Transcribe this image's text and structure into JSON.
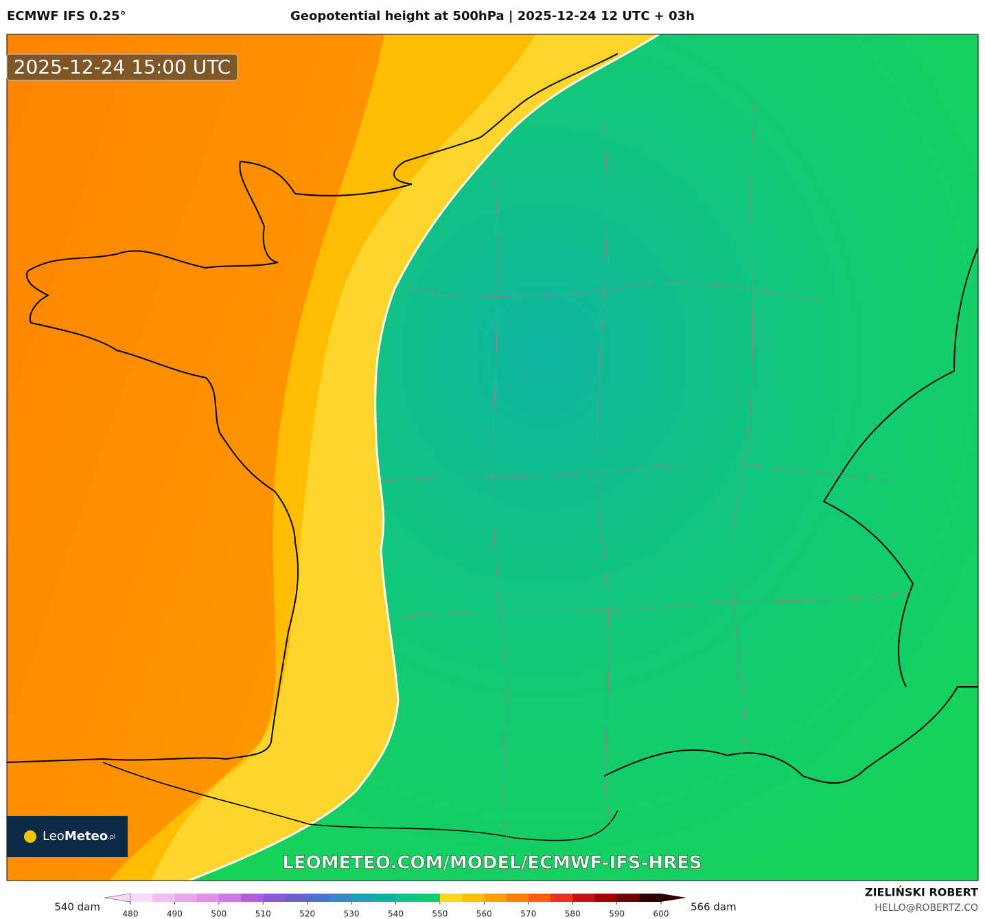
{
  "header": {
    "model": "ECMWF IFS 0.25°",
    "title": "Geopotential height at 500hPa | 2025-12-24 12 UTC + 03h"
  },
  "map": {
    "valid_time": "2025-12-24 15:00 UTC",
    "watermark": "LEOMETEO.COM/MODEL/ECMWF-IFS-HRES",
    "logo": {
      "name_light": "Leo",
      "name_bold": "Meteo",
      "suffix": ".pl"
    }
  },
  "colorbar": {
    "min_label": "540 dam",
    "max_label": "566 dam",
    "range": [
      480,
      600
    ],
    "ticks": [
      480,
      490,
      500,
      510,
      520,
      530,
      540,
      550,
      560,
      570,
      580,
      590,
      600
    ],
    "edges": [
      480,
      485,
      490,
      495,
      500,
      505,
      510,
      515,
      520,
      525,
      530,
      535,
      540,
      545,
      550,
      555,
      560,
      565,
      570,
      575,
      580,
      585,
      590,
      595,
      600
    ],
    "colors": [
      "#f8d8f8",
      "#f0c0f0",
      "#e8a8ee",
      "#e090ea",
      "#cc78e4",
      "#b060dc",
      "#8c5cd8",
      "#6a60d4",
      "#4c70d0",
      "#3a88c8",
      "#20a0b8",
      "#10b0a0",
      "#10c088",
      "#10cc70",
      "#fcd820",
      "#ffc000",
      "#ffa000",
      "#ff8000",
      "#ff5a10",
      "#ee3020",
      "#c81010",
      "#a00000",
      "#700000",
      "#300000"
    ]
  },
  "footer": {
    "author": "ZIELIŃSKI ROBERT",
    "email": "HELLO@ROBERTZ.CO"
  }
}
